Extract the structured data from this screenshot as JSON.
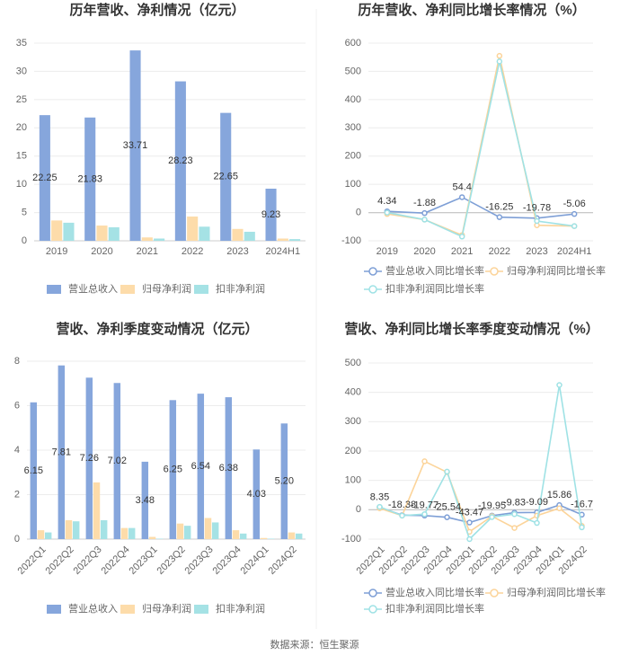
{
  "chart_data": [
    {
      "type": "bar",
      "title": "历年营收、净利情况（亿元）",
      "categories": [
        "2019",
        "2020",
        "2021",
        "2022",
        "2023",
        "2024H1"
      ],
      "series": [
        {
          "name": "营业总收入",
          "color": "#86a6dc",
          "values": [
            22.25,
            21.83,
            33.71,
            28.23,
            22.65,
            9.23
          ],
          "show_labels": true
        },
        {
          "name": "归母净利润",
          "color": "#fddcaa",
          "values": [
            3.6,
            2.7,
            0.6,
            4.3,
            2.1,
            0.4
          ]
        },
        {
          "name": "扣非净利润",
          "color": "#a5e2e5",
          "values": [
            3.2,
            2.4,
            0.4,
            2.5,
            1.6,
            0.3
          ]
        }
      ],
      "ylim": [
        0,
        35
      ],
      "yticks": [
        0,
        5,
        10,
        15,
        20,
        25,
        30,
        35
      ],
      "grid": true
    },
    {
      "type": "line",
      "title": "历年营收、净利同比增长率情况（%）",
      "categories": [
        "2019",
        "2020",
        "2021",
        "2022",
        "2023",
        "2024H1"
      ],
      "series": [
        {
          "name": "营业总收入同比增长率",
          "color": "#7e9fd6",
          "values": [
            4.34,
            -1.88,
            54.4,
            -16.25,
            -19.78,
            -5.06
          ],
          "show_labels": true
        },
        {
          "name": "归母净利润同比增长率",
          "color": "#fcd49a",
          "values": [
            -5,
            -25,
            -80,
            555,
            -45,
            -48
          ]
        },
        {
          "name": "扣非净利润同比增长率",
          "color": "#9fe2e5",
          "values": [
            0,
            -25,
            -85,
            535,
            -30,
            -48
          ]
        }
      ],
      "ylim": [
        -100,
        600
      ],
      "yticks": [
        -100,
        0,
        100,
        200,
        300,
        400,
        500,
        600
      ],
      "grid": true
    },
    {
      "type": "bar",
      "title": "营收、净利季度变动情况（亿元）",
      "categories": [
        "2022Q1",
        "2022Q2",
        "2022Q3",
        "2022Q4",
        "2023Q1",
        "2023Q2",
        "2023Q3",
        "2023Q4",
        "2024Q1",
        "2024Q2"
      ],
      "series": [
        {
          "name": "营业总收入",
          "color": "#86a6dc",
          "values": [
            6.15,
            7.81,
            7.26,
            7.02,
            3.48,
            6.25,
            6.54,
            6.38,
            4.03,
            5.2
          ],
          "value_labels": [
            "6.15",
            "7.81",
            "7.26",
            "7.02",
            "3.48",
            "6.25",
            "6.54",
            "6.38",
            "4.03",
            "5.20"
          ],
          "show_labels": true
        },
        {
          "name": "归母净利润",
          "color": "#fddcaa",
          "values": [
            0.4,
            0.85,
            2.55,
            0.5,
            0.1,
            0.7,
            0.95,
            0.4,
            0.05,
            0.3
          ]
        },
        {
          "name": "扣非净利润",
          "color": "#a5e2e5",
          "values": [
            0.3,
            0.8,
            0.85,
            0.5,
            0.02,
            0.6,
            0.75,
            0.25,
            0.02,
            0.25
          ]
        }
      ],
      "ylim": [
        0,
        8
      ],
      "yticks": [
        0,
        2,
        4,
        6,
        8
      ],
      "grid": true
    },
    {
      "type": "line",
      "title": "营收、净利同比增长率季度变动情况（%）",
      "categories": [
        "2022Q1",
        "2022Q2",
        "2022Q3",
        "2022Q4",
        "2023Q1",
        "2023Q2",
        "2023Q3",
        "2023Q4",
        "2024Q1",
        "2024Q2"
      ],
      "series": [
        {
          "name": "营业总收入同比增长率",
          "color": "#7e9fd6",
          "values": [
            8.35,
            -18.38,
            -19.77,
            -25.54,
            -43.47,
            -19.95,
            -9.83,
            -9.09,
            15.86,
            -16.7
          ],
          "show_labels": true
        },
        {
          "name": "归母净利润同比增长率",
          "color": "#fcd49a",
          "values": [
            5,
            -20,
            165,
            128,
            -75,
            -22,
            -62,
            -20,
            5,
            -55
          ]
        },
        {
          "name": "扣非净利润同比增长率",
          "color": "#9fe2e5",
          "values": [
            10,
            -20,
            -15,
            130,
            -100,
            -25,
            -15,
            -45,
            425,
            -60
          ]
        }
      ],
      "ylim": [
        -100,
        500
      ],
      "yticks": [
        -100,
        0,
        100,
        200,
        300,
        400,
        500
      ],
      "grid": true
    }
  ],
  "source": "数据来源：恒生聚源"
}
